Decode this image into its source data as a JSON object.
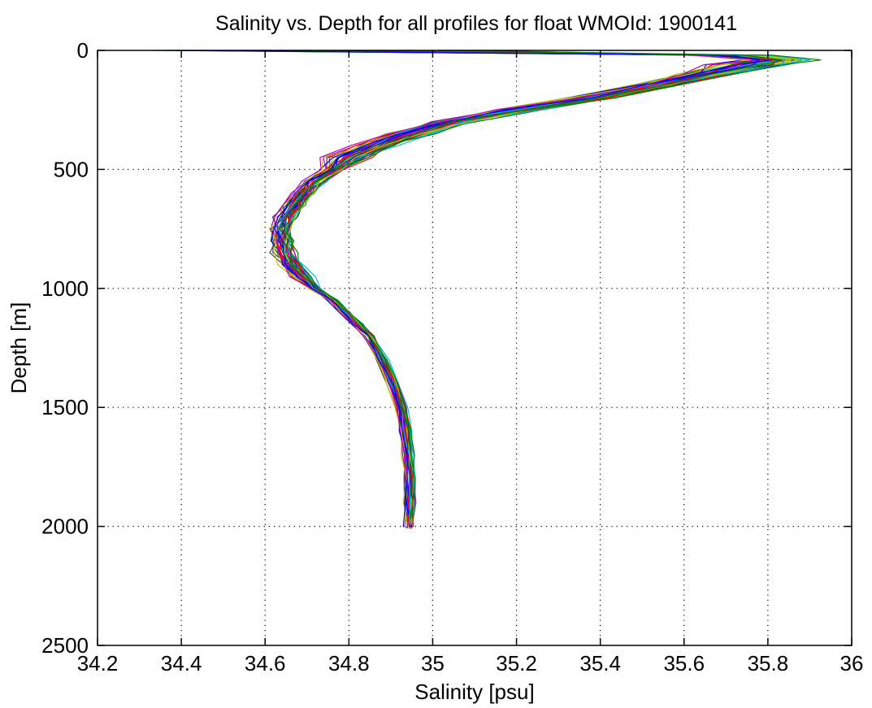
{
  "chart_data": {
    "type": "line",
    "title": "Salinity vs. Depth for all profiles for float WMOId: 1900141",
    "xlabel": "Salinity [psu]",
    "ylabel": "Depth [m]",
    "xlim": [
      34.2,
      36
    ],
    "ylim": [
      0,
      2500
    ],
    "y_reversed": true,
    "grid": true,
    "x_ticks": [
      "34.2",
      "34.4",
      "34.6",
      "34.8",
      "35",
      "35.2",
      "35.4",
      "35.6",
      "35.8",
      "36"
    ],
    "y_ticks": [
      "0",
      "500",
      "1000",
      "1500",
      "2000",
      "2500"
    ],
    "profile_count": 44,
    "mean_profile": {
      "depth": [
        0,
        20,
        40,
        60,
        100,
        150,
        200,
        250,
        300,
        350,
        400,
        450,
        500,
        550,
        600,
        650,
        700,
        750,
        800,
        850,
        900,
        950,
        1000,
        1050,
        1100,
        1150,
        1200,
        1300,
        1400,
        1500,
        1600,
        1700,
        1800,
        1900,
        2000
      ],
      "salinity": [
        35.5,
        35.7,
        35.82,
        35.75,
        35.65,
        35.52,
        35.38,
        35.2,
        35.05,
        34.94,
        34.86,
        34.8,
        34.76,
        34.72,
        34.69,
        34.67,
        34.65,
        34.64,
        34.64,
        34.645,
        34.66,
        34.69,
        34.72,
        34.76,
        34.79,
        34.82,
        34.85,
        34.88,
        34.905,
        34.925,
        34.935,
        34.94,
        34.945,
        34.945,
        34.945
      ]
    },
    "series_colors": [
      "#0000ff",
      "#008000",
      "#ff0000",
      "#00bfbf",
      "#bf00bf",
      "#bfbf00",
      "#404040"
    ]
  }
}
